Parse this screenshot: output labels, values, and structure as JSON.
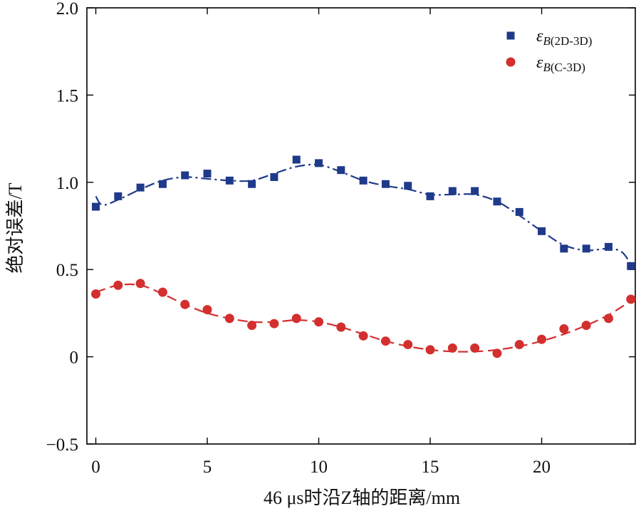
{
  "chart_data": {
    "type": "scatter",
    "xlabel": "46 μs时沿Z轴的距离/mm",
    "ylabel": "绝对误差/T",
    "xlim": [
      -0.4,
      24.2
    ],
    "ylim": [
      -0.5,
      2.0
    ],
    "xticks": [
      0,
      5,
      10,
      15,
      20
    ],
    "yticks": [
      -0.5,
      0,
      0.5,
      1.0,
      1.5,
      2.0
    ],
    "ytick_labels": [
      "−0.5",
      "0",
      "0.5",
      "1.0",
      "1.5",
      "2.0"
    ],
    "legend_position": "top-right",
    "series": [
      {
        "name": "ε",
        "subscript": "B(2D-3D)",
        "marker": "square",
        "color": "#1f3a8a",
        "line_style": "dash-dot",
        "x": [
          0,
          1,
          2,
          3,
          4,
          5,
          6,
          7,
          8,
          9,
          10,
          11,
          12,
          13,
          14,
          15,
          16,
          17,
          18,
          19,
          20,
          21,
          22,
          23,
          24
        ],
        "y": [
          0.86,
          0.92,
          0.97,
          0.99,
          1.04,
          1.05,
          1.01,
          0.99,
          1.03,
          1.13,
          1.11,
          1.07,
          1.01,
          0.99,
          0.98,
          0.92,
          0.95,
          0.95,
          0.89,
          0.83,
          0.72,
          0.62,
          0.62,
          0.63,
          0.52
        ],
        "fit_x": [
          0,
          0.3,
          1,
          2,
          3,
          4,
          5,
          6,
          7,
          8,
          9,
          10,
          11,
          12,
          13,
          14,
          15,
          16,
          17,
          18,
          19,
          20,
          21,
          22,
          23,
          23.6,
          24
        ],
        "fit_y": [
          0.92,
          0.87,
          0.9,
          0.96,
          1.01,
          1.03,
          1.02,
          1.01,
          1.01,
          1.05,
          1.09,
          1.1,
          1.06,
          1.01,
          0.98,
          0.96,
          0.93,
          0.93,
          0.93,
          0.89,
          0.81,
          0.72,
          0.64,
          0.61,
          0.62,
          0.6,
          0.53
        ]
      },
      {
        "name": "ε",
        "subscript": "B(C-3D)",
        "marker": "circle",
        "color": "#d32f2f",
        "line_style": "dashed",
        "x": [
          0,
          1,
          2,
          3,
          4,
          5,
          6,
          7,
          8,
          9,
          10,
          11,
          12,
          13,
          14,
          15,
          16,
          17,
          18,
          19,
          20,
          21,
          22,
          23,
          24
        ],
        "y": [
          0.36,
          0.41,
          0.42,
          0.37,
          0.3,
          0.27,
          0.22,
          0.18,
          0.19,
          0.22,
          0.2,
          0.17,
          0.12,
          0.09,
          0.07,
          0.04,
          0.05,
          0.05,
          0.02,
          0.07,
          0.1,
          0.16,
          0.18,
          0.22,
          0.33
        ],
        "fit_x": [
          0,
          1,
          2,
          3,
          4,
          5,
          6,
          7,
          8,
          9,
          10,
          11,
          12,
          13,
          14,
          15,
          16,
          17,
          18,
          19,
          20,
          21,
          22,
          23,
          24
        ],
        "fit_y": [
          0.37,
          0.41,
          0.41,
          0.36,
          0.3,
          0.25,
          0.22,
          0.2,
          0.2,
          0.21,
          0.2,
          0.17,
          0.13,
          0.09,
          0.06,
          0.04,
          0.03,
          0.03,
          0.04,
          0.06,
          0.09,
          0.13,
          0.18,
          0.24,
          0.32
        ]
      }
    ]
  }
}
